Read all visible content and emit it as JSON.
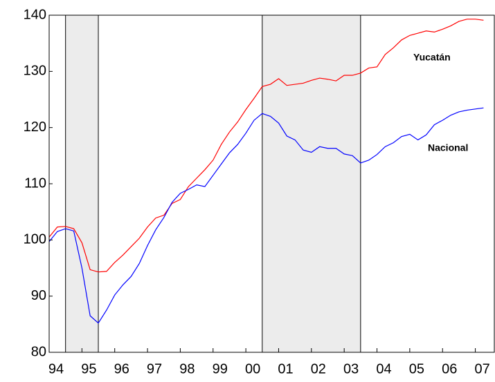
{
  "chart_data": {
    "type": "line",
    "x": [
      1994,
      1994.25,
      1994.5,
      1994.75,
      1995,
      1995.25,
      1995.5,
      1995.75,
      1996,
      1996.25,
      1996.5,
      1996.75,
      1997,
      1997.25,
      1997.5,
      1997.75,
      1998,
      1998.25,
      1998.5,
      1998.75,
      1999,
      1999.25,
      1999.5,
      1999.75,
      2000,
      2000.25,
      2000.5,
      2000.75,
      2001,
      2001.25,
      2001.5,
      2001.75,
      2002,
      2002.25,
      2002.5,
      2002.75,
      2003,
      2003.25,
      2003.5,
      2003.75,
      2004,
      2004.25,
      2004.5,
      2004.75,
      2005,
      2005.25,
      2005.5,
      2005.75,
      2006,
      2006.25,
      2006.5,
      2006.75,
      2007,
      2007.25
    ],
    "series": [
      {
        "name": "Yucatán",
        "color": "#ff0000",
        "values": [
          100.5,
          102.3,
          102.4,
          102.0,
          99.5,
          94.7,
          94.3,
          94.4,
          96.0,
          97.3,
          98.8,
          100.3,
          102.3,
          103.9,
          104.4,
          106.5,
          107.2,
          109.5,
          111.0,
          112.5,
          114.2,
          117.0,
          119.2,
          121.0,
          123.2,
          125.2,
          127.3,
          127.7,
          128.7,
          127.5,
          127.7,
          127.9,
          128.4,
          128.8,
          128.6,
          128.3,
          129.3,
          129.3,
          129.7,
          130.6,
          130.8,
          133.0,
          134.2,
          135.6,
          136.4,
          136.8,
          137.2,
          137.0,
          137.5,
          138.1,
          138.9,
          139.3,
          139.3,
          139.1
        ]
      },
      {
        "name": "Nacional",
        "color": "#0000ff",
        "values": [
          99.7,
          101.5,
          102.0,
          101.6,
          95.0,
          86.5,
          85.2,
          87.5,
          90.2,
          92.0,
          93.5,
          95.8,
          99.0,
          101.8,
          104.0,
          106.7,
          108.3,
          109.0,
          109.8,
          109.5,
          111.5,
          113.5,
          115.5,
          117.0,
          119.0,
          121.3,
          122.5,
          122.0,
          120.8,
          118.5,
          117.8,
          116.0,
          115.6,
          116.6,
          116.3,
          116.3,
          115.3,
          115.0,
          113.7,
          114.2,
          115.2,
          116.6,
          117.3,
          118.4,
          118.8,
          117.8,
          118.7,
          120.5,
          121.3,
          122.2,
          122.8,
          123.1,
          123.3,
          123.5
        ]
      }
    ],
    "shaded_regions": [
      [
        1994.5,
        1995.5
      ],
      [
        2000.5,
        2003.5
      ]
    ],
    "xlim": [
      1994,
      2007.6
    ],
    "xticks": [
      {
        "value": 1994,
        "label": "94"
      },
      {
        "value": 1995,
        "label": "95"
      },
      {
        "value": 1996,
        "label": "96"
      },
      {
        "value": 1997,
        "label": "97"
      },
      {
        "value": 1998,
        "label": "98"
      },
      {
        "value": 1999,
        "label": "99"
      },
      {
        "value": 2000,
        "label": "00"
      },
      {
        "value": 2001,
        "label": "01"
      },
      {
        "value": 2002,
        "label": "02"
      },
      {
        "value": 2003,
        "label": "03"
      },
      {
        "value": 2004,
        "label": "04"
      },
      {
        "value": 2005,
        "label": "05"
      },
      {
        "value": 2006,
        "label": "06"
      },
      {
        "value": 2007,
        "label": "07"
      }
    ],
    "ylim": [
      80,
      140
    ],
    "yticks": [
      80,
      90,
      100,
      110,
      120,
      130,
      140
    ]
  }
}
